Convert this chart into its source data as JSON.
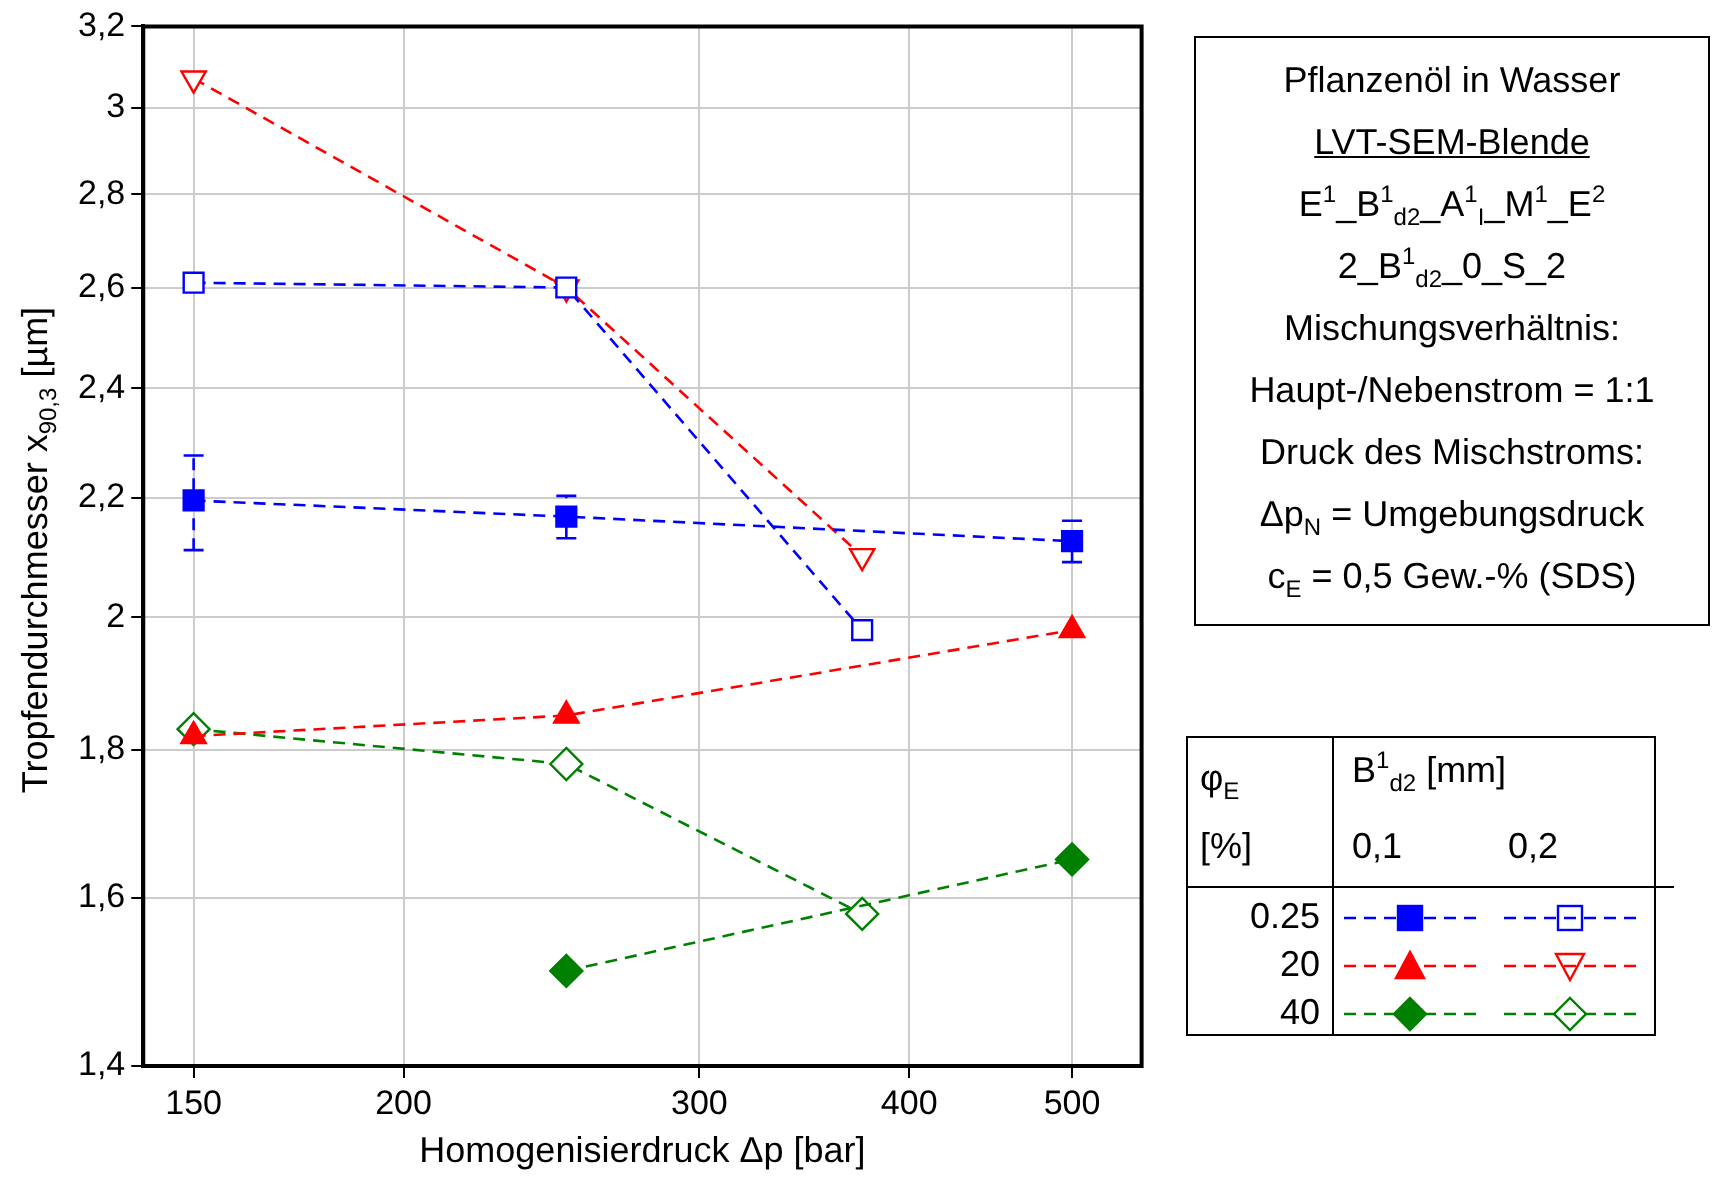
{
  "chart_data": {
    "type": "line",
    "xlabel": "Homogenisierdruck Δp [bar]",
    "ylabel": "Tropfendurchmesser x$_{90,3}$ [µm]",
    "log": "xy",
    "grid": true,
    "legend": "right",
    "line_style": "dashed",
    "legend_title": "B$^{1}$$_{d2}$ [mm]",
    "xlim": [
      140,
      550
    ],
    "xticks": [
      150,
      200,
      300,
      400,
      500
    ],
    "ylim": [
      1.4,
      3.2
    ],
    "yticks": [
      {
        "value": 1.4,
        "label": "1,4"
      },
      {
        "value": 1.6,
        "label": "1,6"
      },
      {
        "value": 1.8,
        "label": "1,8"
      },
      2,
      {
        "value": 2.2,
        "label": "2,2"
      },
      {
        "value": 2.4,
        "label": "2,4"
      },
      {
        "value": 2.6,
        "label": "2,6"
      },
      {
        "value": 2.8,
        "label": "2,8"
      },
      3,
      {
        "value": 3.2,
        "label": "3,2"
      }
    ],
    "annotations": [
      "Pflanzenöl in Wasser",
      "LVT-SEM-Blende",
      "E$^{1}$_B$^{1}$$_{d2}$_A$^{1}$$_{I}$_M$^{1}$_E$^{2}$",
      "2_B$^{1}$$_{d2}$_0_S_2",
      "Mischungsverhältnis:",
      "Haupt-/Nebenstrom = 1:1",
      "Druck des Mischstroms:",
      "Δp$_{N}$ = Umgebungsdruck",
      "c$_{E}$ = 0,5 Gew.-% (SDS)",
      "φ$_{E}$",
      "[%]",
      "0,1",
      "0,2"
    ],
    "series": [
      {
        "name": "0.25",
        "color": "#0000ff",
        "marker": "square",
        "x": [
          150,
          250,
          500
        ],
        "values": [
          2.195,
          2.167,
          2.125
        ],
        "errors": [
          [
            2.11,
            2.275
          ],
          [
            2.13,
            2.203
          ],
          [
            2.09,
            2.16
          ]
        ]
      },
      {
        "color": "#0000ff",
        "marker": "square",
        "x": [
          150,
          250,
          375
        ],
        "values": [
          2.61,
          2.6,
          1.98
        ]
      },
      {
        "name": "20",
        "color": "#ff0000",
        "marker": "triangle",
        "x": [
          150,
          250,
          500
        ],
        "values": [
          1.82,
          1.85,
          1.98
        ]
      },
      {
        "color": "#ff0000",
        "marker": "triangle",
        "x": [
          150,
          250,
          375
        ],
        "values": [
          3.07,
          2.6,
          2.1
        ]
      },
      {
        "name": "40",
        "color": "#008000",
        "marker": "diamond",
        "x": [
          250,
          500
        ],
        "values": [
          1.51,
          1.65
        ]
      },
      {
        "color": "#008000",
        "marker": "diamond",
        "x": [
          150,
          250,
          375
        ],
        "values": [
          1.83,
          1.78,
          1.58
        ]
      }
    ]
  }
}
